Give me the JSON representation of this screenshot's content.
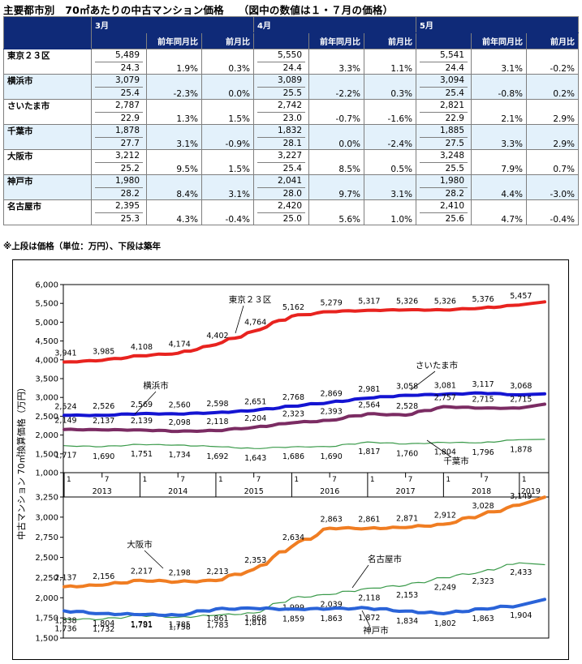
{
  "title": {
    "main": "主要都市別　70㎡あたりの中古マンション価格",
    "note": "（図中の数値は１・７月の価格）"
  },
  "table": {
    "months": [
      "3月",
      "4月",
      "5月"
    ],
    "sub_headers": {
      "yoy": "前年同月比",
      "mom": "前月比"
    },
    "rows": [
      {
        "city": "東京２３区",
        "cells": [
          {
            "price": "5,489",
            "age": "24.3",
            "yoy": "1.9%",
            "mom": "0.3%"
          },
          {
            "price": "5,550",
            "age": "24.4",
            "yoy": "3.3%",
            "mom": "1.1%"
          },
          {
            "price": "5,541",
            "age": "24.4",
            "yoy": "3.1%",
            "mom": "-0.2%"
          }
        ]
      },
      {
        "city": "横浜市",
        "cells": [
          {
            "price": "3,079",
            "age": "25.4",
            "yoy": "-2.3%",
            "mom": "0.0%"
          },
          {
            "price": "3,089",
            "age": "25.5",
            "yoy": "-2.2%",
            "mom": "0.3%"
          },
          {
            "price": "3,094",
            "age": "25.4",
            "yoy": "-0.8%",
            "mom": "0.2%"
          }
        ]
      },
      {
        "city": "さいたま市",
        "cells": [
          {
            "price": "2,787",
            "age": "22.9",
            "yoy": "1.3%",
            "mom": "1.5%"
          },
          {
            "price": "2,742",
            "age": "23.0",
            "yoy": "-0.7%",
            "mom": "-1.6%"
          },
          {
            "price": "2,821",
            "age": "22.9",
            "yoy": "2.1%",
            "mom": "2.9%"
          }
        ]
      },
      {
        "city": "千葉市",
        "cells": [
          {
            "price": "1,878",
            "age": "27.7",
            "yoy": "3.1%",
            "mom": "-0.9%"
          },
          {
            "price": "1,832",
            "age": "28.1",
            "yoy": "0.0%",
            "mom": "-2.4%"
          },
          {
            "price": "1,885",
            "age": "27.5",
            "yoy": "3.3%",
            "mom": "2.9%"
          }
        ]
      },
      {
        "city": "大阪市",
        "cells": [
          {
            "price": "3,212",
            "age": "25.2",
            "yoy": "9.5%",
            "mom": "1.5%"
          },
          {
            "price": "3,227",
            "age": "25.4",
            "yoy": "8.5%",
            "mom": "0.5%"
          },
          {
            "price": "3,248",
            "age": "25.5",
            "yoy": "7.9%",
            "mom": "0.7%"
          }
        ]
      },
      {
        "city": "神戸市",
        "cells": [
          {
            "price": "1,980",
            "age": "28.2",
            "yoy": "8.4%",
            "mom": "3.1%"
          },
          {
            "price": "2,041",
            "age": "28.0",
            "yoy": "9.7%",
            "mom": "3.1%"
          },
          {
            "price": "1,980",
            "age": "28.2",
            "yoy": "4.4%",
            "mom": "-3.0%"
          }
        ]
      },
      {
        "city": "名古屋市",
        "cells": [
          {
            "price": "2,395",
            "age": "25.3",
            "yoy": "4.3%",
            "mom": "-0.4%"
          },
          {
            "price": "2,420",
            "age": "25.0",
            "yoy": "5.6%",
            "mom": "1.0%"
          },
          {
            "price": "2,410",
            "age": "25.6",
            "yoy": "4.7%",
            "mom": "-0.4%"
          }
        ]
      }
    ]
  },
  "footnote": "※上段は価格（単位：万円）、下段は築年",
  "chart_data": {
    "type": "line",
    "ylabel": "中古マンション 70㎡換算価格（万円）",
    "x_axis": {
      "month_ticks": [
        "1",
        "7",
        "1",
        "7",
        "1",
        "7",
        "1",
        "7",
        "1",
        "7",
        "1",
        "7",
        "1"
      ],
      "years": [
        "2013",
        "2014",
        "2015",
        "2016",
        "2017",
        "2018",
        "2019"
      ],
      "range": [
        "2013-01",
        "2019-05"
      ]
    },
    "panels": [
      {
        "name": "upper",
        "ylim": [
          1000,
          6000
        ],
        "yticks": [
          "1,000",
          "1,500",
          "2,000",
          "2,500",
          "3,000",
          "3,500",
          "4,000",
          "4,500",
          "5,000",
          "5,500",
          "6,000"
        ],
        "series": [
          {
            "name": "東京２３区",
            "color": "#e8231f",
            "labels": [
              "3,941",
              "3,985",
              "4,108",
              "4,174",
              "4,402",
              "4,764",
              "5,162",
              "5,279",
              "5,317",
              "5,326",
              "5,326",
              "5,376",
              "5,457"
            ],
            "values": [
              3941,
              3985,
              4108,
              4174,
              4402,
              4764,
              5162,
              5279,
              5317,
              5326,
              5326,
              5376,
              5457
            ],
            "latest": 5541
          },
          {
            "name": "横浜市",
            "color": "#1414d2",
            "labels": [
              "2,524",
              "2,526",
              "2,569",
              "2,560",
              "2,598",
              "2,651",
              "2,768",
              "2,869",
              "2,981",
              "3,058",
              "3,081",
              "3,117",
              "3,068"
            ],
            "values": [
              2524,
              2526,
              2569,
              2560,
              2598,
              2651,
              2768,
              2869,
              2981,
              3058,
              3081,
              3117,
              3068
            ],
            "latest": 3094
          },
          {
            "name": "さいたま市",
            "color": "#7b2c63",
            "labels": [
              "2,149",
              "2,137",
              "2,139",
              "2,098",
              "2,118",
              "2,204",
              "2,323",
              "2,393",
              "2,564",
              "2,528",
              "2,757",
              "2,715",
              "2,715"
            ],
            "values": [
              2149,
              2137,
              2139,
              2098,
              2118,
              2204,
              2323,
              2393,
              2564,
              2528,
              2757,
              2715,
              2715
            ],
            "latest": 2821
          },
          {
            "name": "千葉市",
            "color": "#3a9a4a",
            "labels": [
              "1,717",
              "1,690",
              "1,751",
              "1,734",
              "1,692",
              "1,643",
              "1,686",
              "1,690",
              "1,817",
              "1,760",
              "1,804",
              "1,796",
              "1,878"
            ],
            "values": [
              1717,
              1690,
              1751,
              1734,
              1692,
              1643,
              1686,
              1690,
              1817,
              1760,
              1804,
              1796,
              1878
            ],
            "latest": 1885
          }
        ]
      },
      {
        "name": "lower",
        "ylim": [
          1500,
          3250
        ],
        "yticks": [
          "1,500",
          "1,750",
          "2,000",
          "2,250",
          "2,500",
          "2,750",
          "3,000",
          "3,250"
        ],
        "series": [
          {
            "name": "大阪市",
            "color": "#f07d22",
            "labels": [
              "2,137",
              "2,156",
              "2,217",
              "2,198",
              "2,213",
              "2,353",
              "2,634",
              "2,863",
              "2,861",
              "2,871",
              "2,912",
              "3,028",
              "3,149"
            ],
            "values": [
              2137,
              2156,
              2217,
              2198,
              2213,
              2353,
              2634,
              2863,
              2861,
              2871,
              2912,
              3028,
              3149
            ],
            "latest": 3248
          },
          {
            "name": "名古屋市",
            "color": "#3a9a4a",
            "labels": [
              "1,736",
              "1,732",
              "1,781",
              "1,758",
              "1,783",
              "1,810",
              "1,999",
              "2,039",
              "2,118",
              "2,153",
              "2,249",
              "2,323",
              "2,433"
            ],
            "values": [
              1736,
              1732,
              1781,
              1758,
              1783,
              1810,
              1999,
              2039,
              2118,
              2153,
              2249,
              2323,
              2433
            ],
            "latest": 2410
          },
          {
            "name": "神戸市",
            "color": "#2a63d8",
            "labels": [
              "1,838",
              "1,804",
              "1,791",
              "1,785",
              "1,861",
              "1,868",
              "1,859",
              "1,863",
              "1,872",
              "1,834",
              "1,802",
              "1,863",
              "1,904"
            ],
            "values": [
              1838,
              1804,
              1791,
              1785,
              1861,
              1868,
              1859,
              1863,
              1872,
              1834,
              1802,
              1863,
              1904
            ],
            "latest": 1980
          }
        ]
      }
    ]
  }
}
